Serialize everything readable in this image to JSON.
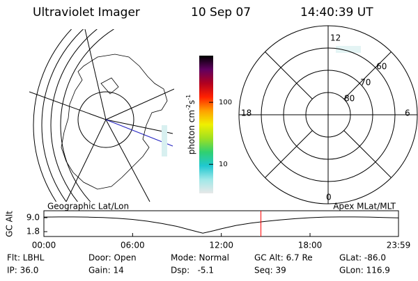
{
  "header": {
    "title": "Ultraviolet Imager",
    "date": "10 Sep 07",
    "time": "14:40:39 UT"
  },
  "colorbar": {
    "label_parts": [
      "photon cm",
      "-2",
      "s",
      "-1"
    ],
    "log": true,
    "clim": [
      3.4,
      566
    ],
    "ticks": [
      10,
      100
    ],
    "colors": [
      "#e8e8e8",
      "#a0e8e8",
      "#20c8d0",
      "#30d070",
      "#a0e020",
      "#f0f000",
      "#ffa000",
      "#ff2000",
      "#b00020",
      "#600060",
      "#000000"
    ]
  },
  "polar_plot": {
    "rlim": [
      90,
      50
    ],
    "mlat_rings": [
      60,
      70,
      80
    ],
    "mlt_labels": [
      "12",
      "18",
      "6",
      "0"
    ]
  },
  "chart_data": {
    "type": "line",
    "ylabel": "GC Alt",
    "left_label": "Geographic Lat/Lon",
    "right_label": "Apex MLat/MLT",
    "x": [
      0,
      1,
      2,
      3,
      4,
      5,
      6,
      7,
      8,
      9,
      10,
      10.75,
      11.5,
      12,
      13,
      14,
      15,
      16,
      17,
      18,
      19,
      20,
      21,
      22,
      23,
      23.983
    ],
    "values": [
      9.3,
      9.4,
      9.4,
      9.3,
      9.1,
      8.7,
      8.1,
      7.2,
      6.0,
      4.5,
      2.5,
      1.0,
      2.3,
      3.3,
      5.0,
      6.2,
      7.1,
      7.9,
      8.5,
      9.0,
      9.3,
      9.4,
      9.4,
      9.3,
      9.1,
      8.9
    ],
    "color": "#000000",
    "marker_x": 14.678,
    "marker_color": "#ff0000",
    "xlim": [
      0,
      23.983
    ],
    "ylim": [
      -0.7,
      12.6
    ],
    "xticks": [
      {
        "value": 0,
        "label": "00:00"
      },
      {
        "value": 6,
        "label": "06:00"
      },
      {
        "value": 12,
        "label": "12:00"
      },
      {
        "value": 18,
        "label": "18:00"
      },
      {
        "value": 23.983,
        "label": "23:59"
      }
    ],
    "yticks": [
      {
        "value": 9,
        "label": "9.0"
      },
      {
        "value": 1.8,
        "label": "1.8"
      }
    ]
  },
  "footer": {
    "rows": [
      [
        "Flt: LBHL",
        "Door: Open",
        "Mode: Normal",
        "GC Alt: 6.7 Re",
        "GLat: -86.0"
      ],
      [
        "IP: 36.0",
        "Gain: 14",
        "Dsp:   -5.1",
        "Seq: 39",
        "GLon: 116.9"
      ]
    ]
  }
}
